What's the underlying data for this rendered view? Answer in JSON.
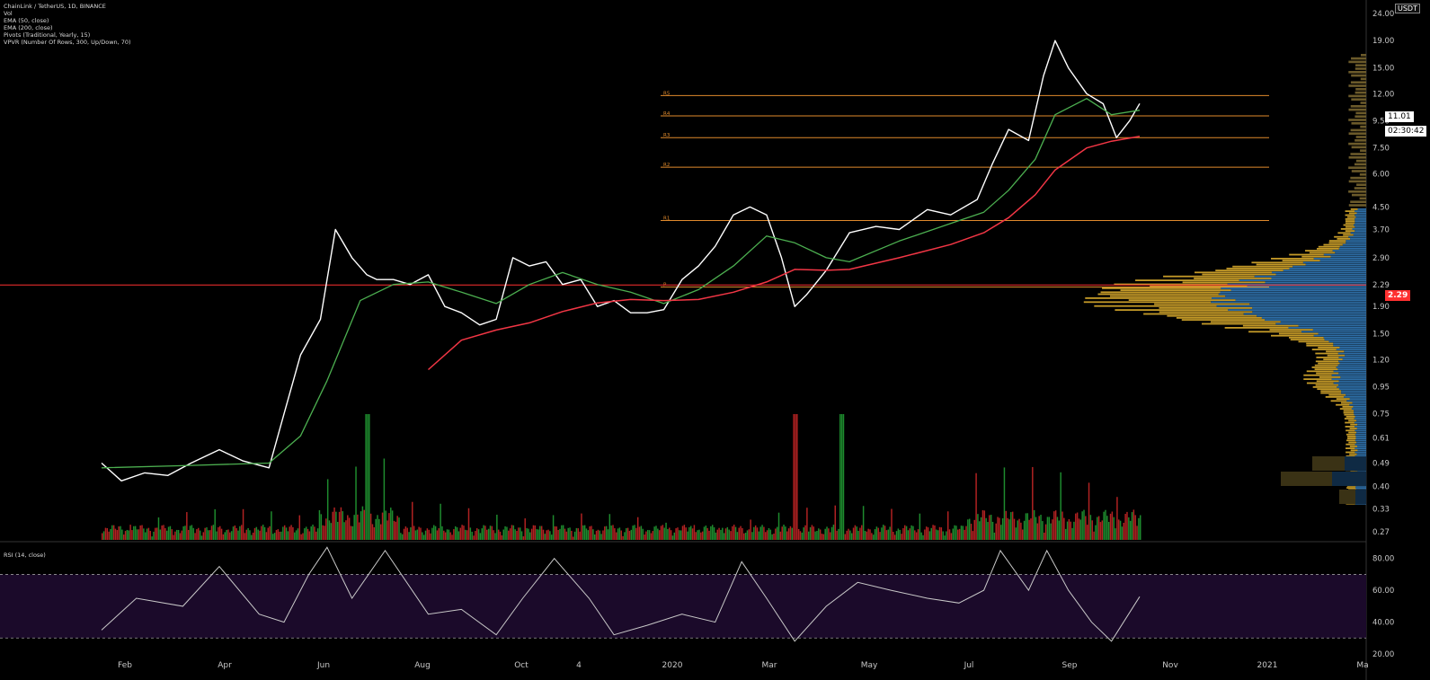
{
  "legend": {
    "symbol": "ChainLink / TetherUS, 1D, BINANCE",
    "lines": [
      "Vol",
      "EMA (50, close)",
      "EMA (200, close)",
      "Pivots (Traditional, Yearly, 15)",
      "VPVR (Number Of Rows, 300, Up/Down, 70)"
    ]
  },
  "rsi_label": "RSI (14, close)",
  "quote_currency": "USDT",
  "last_price": "11.01",
  "countdown": "02:30:42",
  "horizontal_line_label": "2.29",
  "colors": {
    "background": "#000000",
    "price": "#ffffff",
    "ema50": "#4caf50",
    "ema200": "#f23645",
    "pivot": "#e08a2c",
    "hline": "#ff3030",
    "vol_up": "#1e8c2e",
    "vol_down": "#b22222",
    "vpvr_up": "#2e6ea6",
    "vpvr_down": "#c49a28",
    "rsi": "#c8c8c8",
    "rsi_band": "#1b0a2a"
  },
  "chart_data": {
    "type": "line",
    "title": "ChainLink / TetherUS, 1D, BINANCE",
    "yscale": "log",
    "ylim": [
      0.25,
      27
    ],
    "price_ticks": [
      "24.00",
      "19.00",
      "15.00",
      "12.00",
      "9.50",
      "7.50",
      "6.00",
      "4.50",
      "3.70",
      "2.90",
      "2.29",
      "1.90",
      "1.50",
      "1.20",
      "0.95",
      "0.75",
      "0.61",
      "0.49",
      "0.40",
      "0.33",
      "0.27"
    ],
    "x_ticks": [
      "Feb",
      "Apr",
      "Jun",
      "Aug",
      "Oct",
      "4",
      "2020",
      "Mar",
      "May",
      "Jul",
      "Sep",
      "Nov",
      "2021",
      "Ma"
    ],
    "series": [
      {
        "name": "ChainLink / TetherUS",
        "x": [
          "2019-01-20",
          "2019-02-01",
          "2019-02-15",
          "2019-03-01",
          "2019-03-15",
          "2019-04-01",
          "2019-04-15",
          "2019-05-01",
          "2019-05-10",
          "2019-05-20",
          "2019-06-01",
          "2019-06-10",
          "2019-06-20",
          "2019-06-29",
          "2019-07-05",
          "2019-07-15",
          "2019-07-25",
          "2019-08-05",
          "2019-08-15",
          "2019-08-25",
          "2019-09-05",
          "2019-09-15",
          "2019-09-25",
          "2019-10-05",
          "2019-10-15",
          "2019-10-25",
          "2019-11-05",
          "2019-11-15",
          "2019-11-25",
          "2019-12-05",
          "2019-12-15",
          "2019-12-25",
          "2020-01-05",
          "2020-01-15",
          "2020-01-25",
          "2020-02-05",
          "2020-02-15",
          "2020-02-25",
          "2020-03-05",
          "2020-03-13",
          "2020-03-20",
          "2020-04-01",
          "2020-04-15",
          "2020-05-01",
          "2020-05-15",
          "2020-06-01",
          "2020-06-15",
          "2020-07-01",
          "2020-07-10",
          "2020-07-20",
          "2020-08-01",
          "2020-08-10",
          "2020-08-17",
          "2020-08-25",
          "2020-09-05",
          "2020-09-15",
          "2020-09-23",
          "2020-10-01",
          "2020-10-07"
        ],
        "values": [
          0.49,
          0.42,
          0.45,
          0.44,
          0.49,
          0.55,
          0.5,
          0.47,
          0.75,
          1.25,
          1.7,
          3.7,
          2.9,
          2.5,
          2.4,
          2.4,
          2.3,
          2.5,
          1.9,
          1.8,
          1.62,
          1.7,
          2.9,
          2.7,
          2.8,
          2.3,
          2.4,
          1.9,
          2.0,
          1.8,
          1.8,
          1.85,
          2.4,
          2.7,
          3.2,
          4.2,
          4.5,
          4.2,
          2.9,
          1.9,
          2.1,
          2.6,
          3.6,
          3.8,
          3.7,
          4.4,
          4.2,
          4.8,
          6.5,
          8.8,
          8.0,
          14.0,
          19.0,
          15.0,
          12.0,
          11.0,
          8.2,
          9.5,
          11.01
        ]
      },
      {
        "name": "EMA (50, close)",
        "x": [
          "2019-01-20",
          "2019-03-15",
          "2019-05-01",
          "2019-05-20",
          "2019-06-05",
          "2019-06-25",
          "2019-07-15",
          "2019-08-05",
          "2019-08-25",
          "2019-09-15",
          "2019-10-05",
          "2019-10-25",
          "2019-11-15",
          "2019-12-05",
          "2019-12-25",
          "2020-01-15",
          "2020-02-05",
          "2020-02-25",
          "2020-03-13",
          "2020-04-01",
          "2020-04-15",
          "2020-05-15",
          "2020-06-15",
          "2020-07-05",
          "2020-07-20",
          "2020-08-05",
          "2020-08-17",
          "2020-09-05",
          "2020-09-20",
          "2020-10-07"
        ],
        "values": [
          0.47,
          0.48,
          0.49,
          0.62,
          1.0,
          2.0,
          2.3,
          2.35,
          2.15,
          1.95,
          2.3,
          2.55,
          2.3,
          2.15,
          1.95,
          2.2,
          2.7,
          3.5,
          3.3,
          2.9,
          2.8,
          3.35,
          3.9,
          4.3,
          5.2,
          6.8,
          10.0,
          11.5,
          10.0,
          10.4
        ]
      },
      {
        "name": "EMA (200, close)",
        "x": [
          "2019-08-05",
          "2019-08-25",
          "2019-09-15",
          "2019-10-05",
          "2019-10-25",
          "2019-11-15",
          "2019-12-05",
          "2019-12-25",
          "2020-01-15",
          "2020-02-05",
          "2020-02-25",
          "2020-03-13",
          "2020-04-01",
          "2020-04-15",
          "2020-05-15",
          "2020-06-15",
          "2020-07-05",
          "2020-07-20",
          "2020-08-05",
          "2020-08-17",
          "2020-09-05",
          "2020-09-20",
          "2020-10-07"
        ],
        "values": [
          1.1,
          1.42,
          1.55,
          1.65,
          1.82,
          1.96,
          2.02,
          2.0,
          2.02,
          2.15,
          2.35,
          2.62,
          2.6,
          2.62,
          2.9,
          3.25,
          3.6,
          4.1,
          5.0,
          6.2,
          7.5,
          7.95,
          8.3
        ]
      }
    ],
    "pivot_levels": [
      {
        "label": "R5",
        "value": 11.8
      },
      {
        "label": "R4",
        "value": 9.9
      },
      {
        "label": "R3",
        "value": 8.2
      },
      {
        "label": "R2",
        "value": 6.35
      },
      {
        "label": "R1",
        "value": 4.0
      },
      {
        "label": "P",
        "value": 2.25
      }
    ],
    "horizontal_line": 2.29,
    "volume_peaks": [
      {
        "x": "2019-06-29",
        "direction": "up"
      },
      {
        "x": "2020-03-13",
        "direction": "down"
      },
      {
        "x": "2020-04-10",
        "direction": "up"
      }
    ],
    "rsi": {
      "name": "RSI (14, close)",
      "ylim": [
        20,
        90
      ],
      "ticks": [
        "80.00",
        "60.00",
        "40.00",
        "20.00"
      ],
      "band": [
        30,
        70
      ],
      "x": [
        "2019-01-20",
        "2019-02-10",
        "2019-03-10",
        "2019-04-01",
        "2019-04-25",
        "2019-05-10",
        "2019-05-25",
        "2019-06-05",
        "2019-06-20",
        "2019-07-10",
        "2019-08-05",
        "2019-08-25",
        "2019-09-15",
        "2019-10-01",
        "2019-10-20",
        "2019-11-10",
        "2019-11-25",
        "2019-12-15",
        "2020-01-05",
        "2020-01-25",
        "2020-02-10",
        "2020-02-25",
        "2020-03-13",
        "2020-04-01",
        "2020-04-20",
        "2020-05-10",
        "2020-06-01",
        "2020-06-20",
        "2020-07-05",
        "2020-07-15",
        "2020-08-01",
        "2020-08-12",
        "2020-08-25",
        "2020-09-08",
        "2020-09-20",
        "2020-10-07"
      ],
      "values": [
        35,
        55,
        50,
        75,
        45,
        40,
        70,
        87,
        55,
        85,
        45,
        48,
        32,
        55,
        80,
        55,
        32,
        38,
        45,
        40,
        78,
        55,
        28,
        50,
        65,
        60,
        55,
        52,
        60,
        85,
        60,
        85,
        60,
        40,
        28,
        56
      ]
    }
  }
}
